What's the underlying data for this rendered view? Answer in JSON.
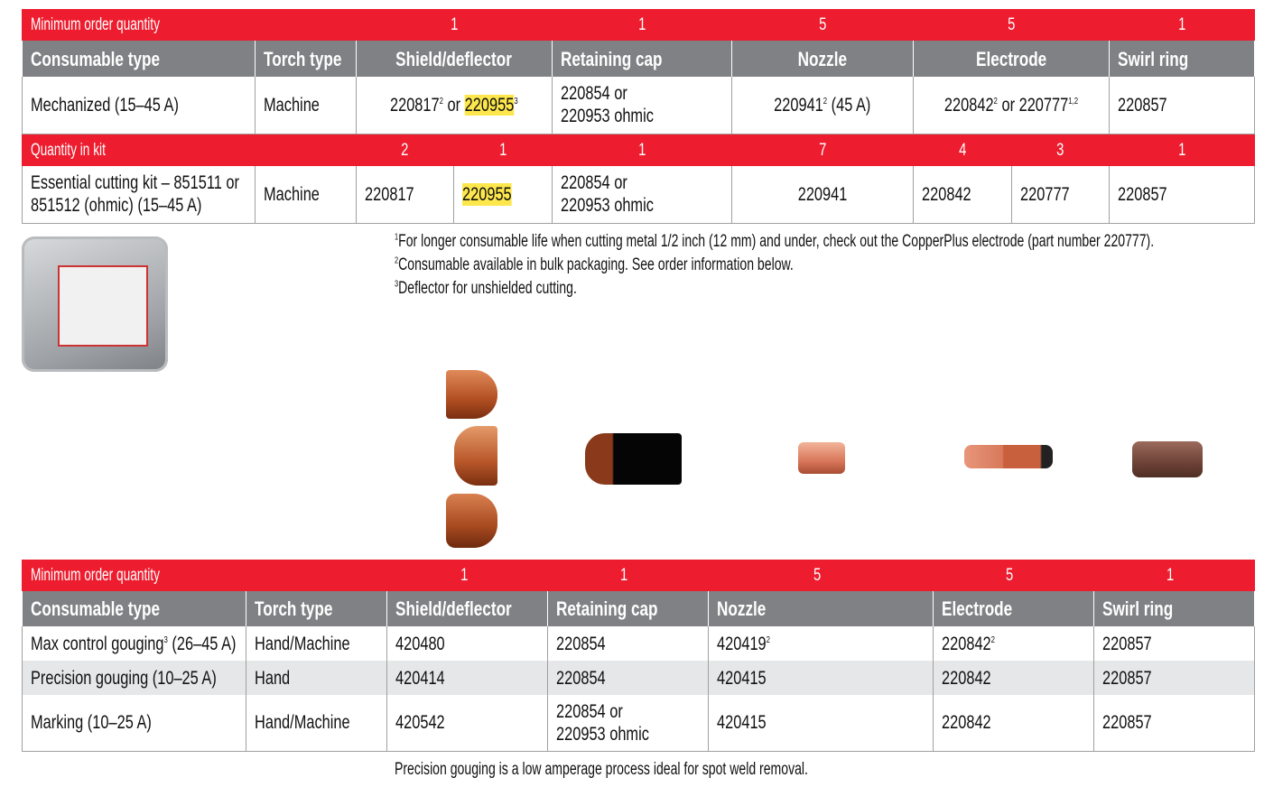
{
  "top_table": {
    "moq_label": "Minimum order quantity",
    "moq": [
      "1",
      "1",
      "5",
      "5",
      "1"
    ],
    "headers": [
      "Consumable type",
      "Torch type",
      "Shield/deflector",
      "Retaining cap",
      "Nozzle",
      "Electrode",
      "Swirl ring"
    ],
    "row1": {
      "type": "Mechanized (15–45 A)",
      "torch": "Machine",
      "shield_a": "220817",
      "shield_a_sup": "2",
      "or": "or",
      "shield_b": "220955",
      "shield_b_sup": "3",
      "cap_1": "220854 or",
      "cap_2": "220953 ohmic",
      "nozzle": "220941",
      "nozzle_sup": "2",
      "nozzle_suffix": "(45 A)",
      "electrode_a": "220842",
      "electrode_a_sup": "2",
      "electrode_b": "220777",
      "electrode_b_sup": "1,2",
      "swirl": "220857"
    },
    "kit_label": "Quantity in kit",
    "kit_qty": [
      "2",
      "1",
      "1",
      "7",
      "4",
      "3",
      "1"
    ],
    "row2": {
      "type_1": "Essential cutting kit – 851511 or",
      "type_2": "851512 (ohmic) (15–45 A)",
      "torch": "Machine",
      "shield_a": "220817",
      "shield_b": "220955",
      "cap_1": "220854 or",
      "cap_2": "220953 ohmic",
      "nozzle": "220941",
      "electrode_a": "220842",
      "electrode_b": "220777",
      "swirl": "220857"
    }
  },
  "footnotes": [
    {
      "num": "1",
      "text": "For longer consumable life when cutting metal 1/2 inch (12 mm) and under, check out the CopperPlus electrode (part number 220777)."
    },
    {
      "num": "2",
      "text": "Consumable available in bulk packaging. See order information below."
    },
    {
      "num": "3",
      "text": "Deflector for unshielded cutting."
    }
  ],
  "bottom_table": {
    "moq_label": "Minimum order quantity",
    "moq": [
      "1",
      "1",
      "5",
      "5",
      "1"
    ],
    "headers": [
      "Consumable type",
      "Torch type",
      "Shield/deflector",
      "Retaining cap",
      "Nozzle",
      "Electrode",
      "Swirl ring"
    ],
    "rows": [
      {
        "type": "Max control gouging",
        "type_sup": "3",
        "type_suffix": "(26–45 A)",
        "torch": "Hand/Machine",
        "shield": "420480",
        "cap": "220854",
        "nozzle": "420419",
        "nozzle_sup": "2",
        "electrode": "220842",
        "electrode_sup": "2",
        "swirl": "220857"
      },
      {
        "type": "Precision gouging (10–25 A)",
        "torch": "Hand",
        "shield": "420414",
        "cap": "220854",
        "nozzle": "420415",
        "electrode": "220842",
        "swirl": "220857"
      },
      {
        "type": "Marking (10–25 A)",
        "torch": "Hand/Machine",
        "shield": "420542",
        "cap_1": "220854 or",
        "cap_2": "220953 ohmic",
        "nozzle": "420415",
        "electrode": "220842",
        "swirl": "220857"
      }
    ]
  },
  "bottom_note": "Precision gouging is a low amperage process ideal for spot weld removal.",
  "colors": {
    "red": "#ed1c2e",
    "gray": "#808184",
    "highlight": "#fde74c",
    "copper": "#c0602f"
  }
}
